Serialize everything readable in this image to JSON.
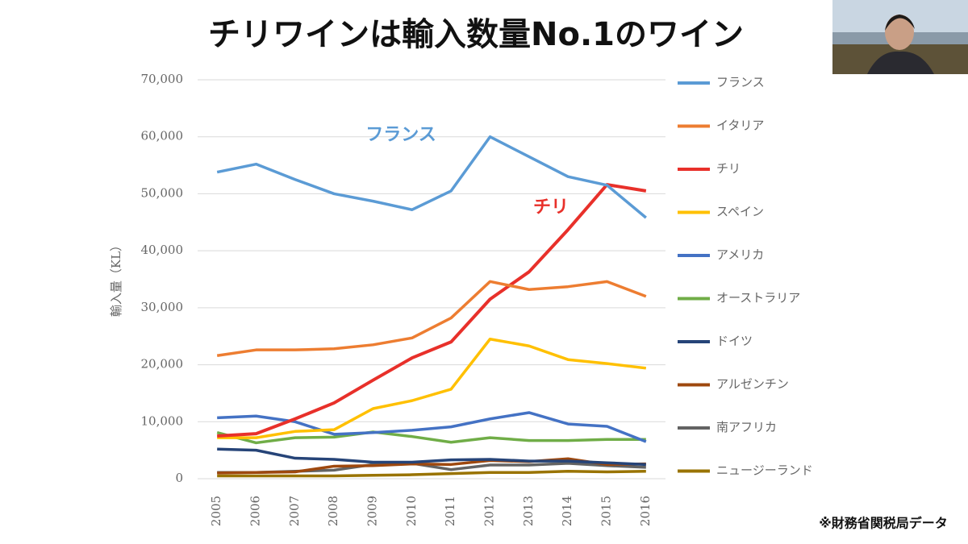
{
  "chart_data": {
    "type": "line",
    "title": "チリワインは輸入数量No.1のワイン",
    "y_label": "輸入量（KL）",
    "source": "※財務省関税局データ",
    "annotations": [
      {
        "text": "フランス",
        "color": "#5b9bd5"
      },
      {
        "text": "チリ",
        "color": "#e8302a"
      }
    ],
    "categories": [
      "2005",
      "2006",
      "2007",
      "2008",
      "2009",
      "2010",
      "2011",
      "2012",
      "2013",
      "2014",
      "2015",
      "2016"
    ],
    "ylim": [
      0,
      70000
    ],
    "yticks": [
      0,
      {
        "value": 10000,
        "label": "10,000"
      },
      {
        "value": 20000,
        "label": "20,000"
      },
      {
        "value": 30000,
        "label": "30,000"
      },
      {
        "value": 40000,
        "label": "40,000"
      },
      {
        "value": 50000,
        "label": "50,000"
      },
      {
        "value": 60000,
        "label": "60,000"
      },
      {
        "value": 70000,
        "label": "70,000"
      }
    ],
    "grid": true,
    "legend": "right",
    "series": [
      {
        "name": "フランス",
        "color": "#5b9bd5",
        "values": [
          53800,
          55200,
          52500,
          50000,
          48700,
          47200,
          50500,
          60000,
          56500,
          53000,
          51500,
          45800
        ]
      },
      {
        "name": "イタリア",
        "color": "#ed7d31",
        "values": [
          21600,
          22600,
          22600,
          22800,
          23500,
          24700,
          28200,
          34600,
          33200,
          33700,
          34600,
          32000
        ]
      },
      {
        "name": "チリ",
        "color": "#e8302a",
        "values": [
          7500,
          7900,
          10500,
          13300,
          17300,
          21200,
          24000,
          31500,
          36300,
          43700,
          51600,
          50500
        ]
      },
      {
        "name": "スペイン",
        "color": "#ffc000",
        "values": [
          7200,
          7200,
          8300,
          8600,
          12300,
          13700,
          15700,
          24500,
          23300,
          20900,
          20200,
          19400
        ]
      },
      {
        "name": "アメリカ",
        "color": "#4472c4",
        "values": [
          10700,
          11000,
          10000,
          7800,
          8100,
          8500,
          9100,
          10500,
          11600,
          9600,
          9200,
          6500
        ]
      },
      {
        "name": "オーストラリア",
        "color": "#70ad47",
        "values": [
          8100,
          6300,
          7200,
          7300,
          8200,
          7400,
          6400,
          7200,
          6700,
          6700,
          6900,
          6900
        ]
      },
      {
        "name": "ドイツ",
        "color": "#264478",
        "values": [
          5200,
          5000,
          3600,
          3400,
          2900,
          2900,
          3300,
          3400,
          3100,
          3100,
          2800,
          2500
        ]
      },
      {
        "name": "アルゼンチン",
        "color": "#9e480e",
        "values": [
          1000,
          1100,
          1200,
          2200,
          2300,
          2600,
          2500,
          3200,
          3000,
          3500,
          2500,
          2600
        ]
      },
      {
        "name": "南アフリカ",
        "color": "#636363",
        "values": [
          1100,
          1100,
          1300,
          1500,
          2500,
          2700,
          1600,
          2400,
          2400,
          2700,
          2300,
          2000
        ]
      },
      {
        "name": "ニュージーランド",
        "color": "#997300",
        "values": [
          500,
          500,
          500,
          500,
          600,
          700,
          900,
          1100,
          1100,
          1300,
          1200,
          1300
        ]
      }
    ]
  }
}
